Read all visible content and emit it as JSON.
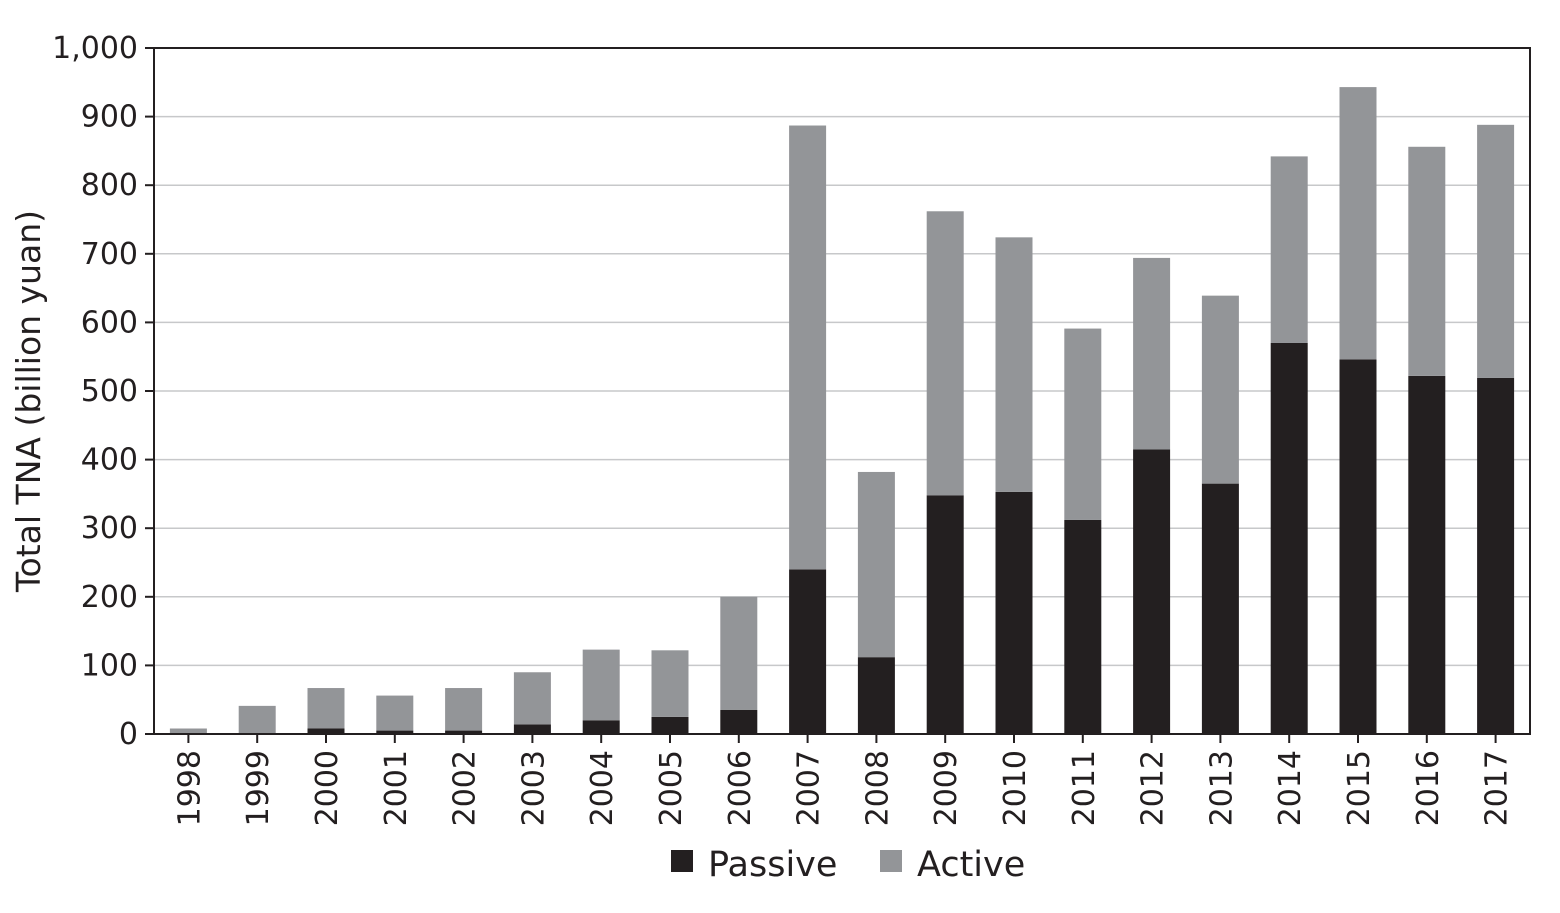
{
  "chart_data": {
    "type": "bar",
    "stacked": true,
    "title": "",
    "xlabel": "",
    "ylabel": "Total TNA (billion yuan)",
    "ylim": [
      0,
      1000
    ],
    "yticks": [
      0,
      100,
      200,
      300,
      400,
      500,
      600,
      700,
      800,
      900,
      1000
    ],
    "ytick_labels": [
      "0",
      "100",
      "200",
      "300",
      "400",
      "500",
      "600",
      "700",
      "800",
      "900",
      "1,000"
    ],
    "grid": true,
    "legend_position": "bottom-center",
    "categories": [
      "1998",
      "1999",
      "2000",
      "2001",
      "2002",
      "2003",
      "2004",
      "2005",
      "2006",
      "2007",
      "2008",
      "2009",
      "2010",
      "2011",
      "2012",
      "2013",
      "2014",
      "2015",
      "2016",
      "2017"
    ],
    "series": [
      {
        "name": "Passive",
        "color": "#231f20",
        "values": [
          0,
          1,
          8,
          5,
          5,
          14,
          20,
          25,
          35,
          240,
          112,
          348,
          353,
          312,
          415,
          365,
          570,
          546,
          522,
          519
        ]
      },
      {
        "name": "Active",
        "color": "#939598",
        "values": [
          8,
          40,
          59,
          51,
          62,
          76,
          103,
          97,
          165,
          647,
          270,
          414,
          371,
          279,
          279,
          274,
          272,
          397,
          334,
          369
        ]
      }
    ]
  }
}
